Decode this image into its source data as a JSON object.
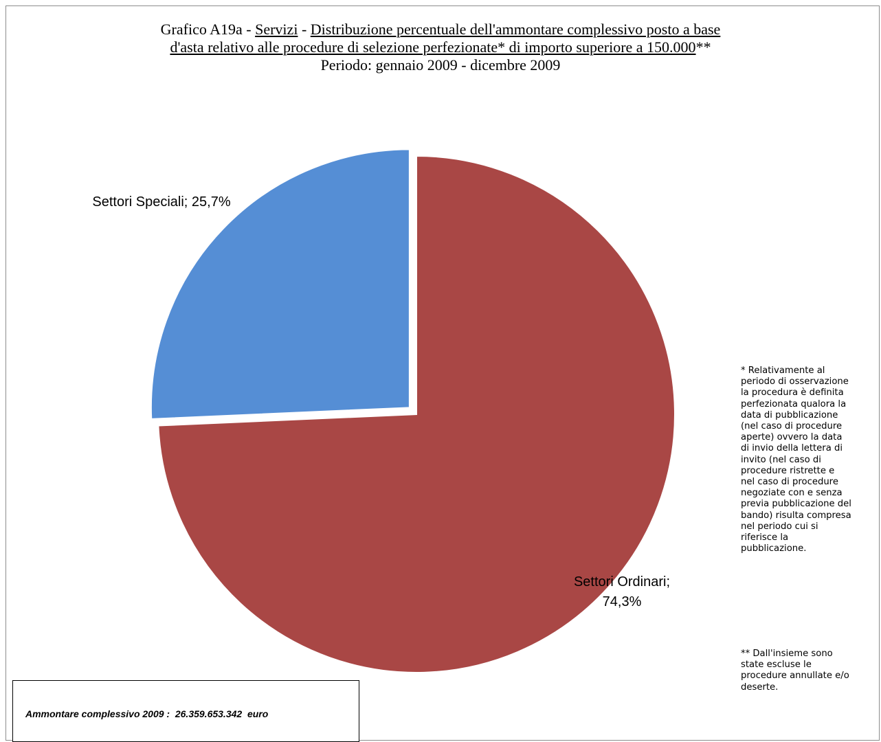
{
  "chart_data": {
    "type": "pie",
    "title": {
      "prefix": "Grafico A19a - ",
      "category": "Servizi",
      "separator": " - ",
      "line1_underlined": "Distribuzione percentuale dell'ammontare complessivo posto a base",
      "line2_underlined": "d'asta relativo alle procedure di selezione perfezionate* di importo superiore a 150.000",
      "line2_suffix": "**",
      "line3": "Periodo: gennaio 2009 - dicembre 2009"
    },
    "slices": [
      {
        "name": "Settori Ordinari",
        "value": 74.3,
        "label_line1": "Settori Ordinari;",
        "label_line2": "74,3%",
        "color": "#a94745",
        "exploded": false
      },
      {
        "name": "Settori Speciali",
        "value": 25.7,
        "label_line1": "Settori Speciali; 25,7%",
        "label_line2": "",
        "color": "#558ed5",
        "exploded": true
      }
    ],
    "start_angle_deg": 0,
    "direction": "clockwise",
    "legend": "none",
    "footnote_1": "* Relativamente al\nperiodo di osservazione\nla procedura è definita\nperfezionata qualora la\ndata di pubblicazione\n(nel caso di procedure\naperte) ovvero la data\ndi invio della lettera di\ninvito (nel caso di\nprocedure ristrette e\nnel caso di procedure\nnegoziate con e senza\nprevia pubblicazione del\nbando) risulta compresa\nnel periodo cui si\nriferisce la\npubblicazione.",
    "footnote_2": "** Dall'insieme sono\nstate escluse le\nprocedure annullate e/o\ndeserte.",
    "total_text": "Ammontare complessivo 2009 :  26.359.653.342  euro"
  }
}
